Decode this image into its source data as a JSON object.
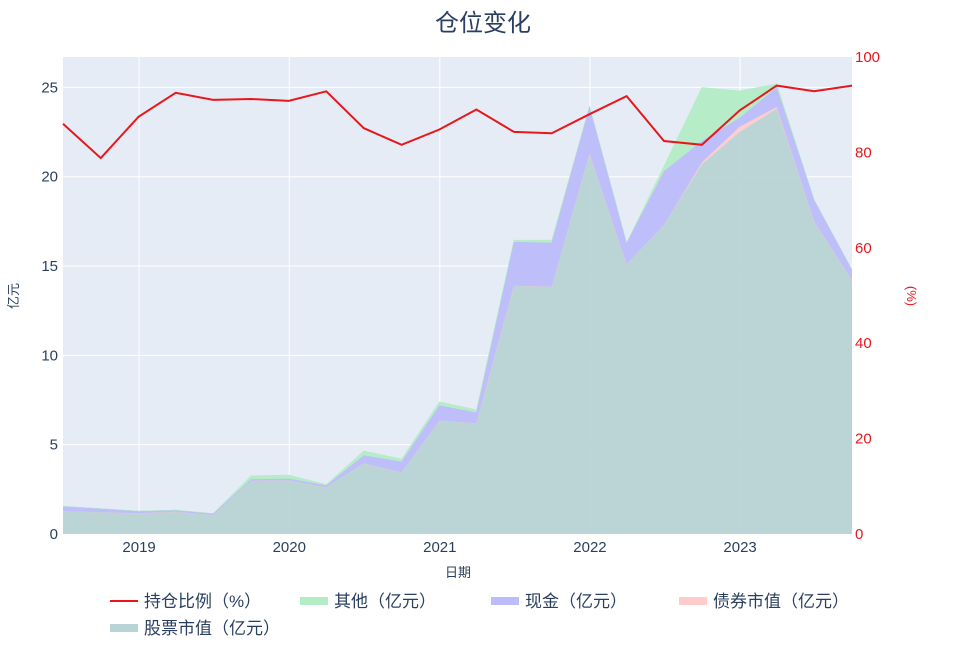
{
  "chart_data": {
    "type": "area",
    "title": "仓位变化",
    "xlabel": "日期",
    "ylabel": "亿元",
    "y2label": "(%)",
    "x_ticks": [
      "2019",
      "2020",
      "2021",
      "2022",
      "2023"
    ],
    "x": [
      "2018-06-30",
      "2018-09-30",
      "2018-12-31",
      "2019-03-31",
      "2019-06-30",
      "2019-09-30",
      "2019-12-31",
      "2020-03-31",
      "2020-06-30",
      "2020-09-30",
      "2020-12-31",
      "2021-03-31",
      "2021-06-30",
      "2021-09-30",
      "2021-12-31",
      "2022-03-31",
      "2022-06-30",
      "2022-09-30",
      "2022-12-31",
      "2023-03-31",
      "2023-06-30",
      "2023-09-30"
    ],
    "ylim": [
      0,
      26.7
    ],
    "yticks": [
      0,
      5,
      10,
      15,
      20,
      25
    ],
    "y2lim": [
      0,
      100
    ],
    "y2ticks": [
      0,
      20,
      40,
      60,
      80,
      100
    ],
    "series": [
      {
        "name": "股票市值（亿元）",
        "type": "area",
        "color": "#b8d4d5",
        "values": [
          1.28,
          1.22,
          1.16,
          1.24,
          1.06,
          2.98,
          3.0,
          2.62,
          3.95,
          3.45,
          6.35,
          6.2,
          13.9,
          13.85,
          21.3,
          15.1,
          17.3,
          20.7,
          22.5,
          23.8,
          17.5,
          14.2
        ]
      },
      {
        "name": "债券市值（亿元）",
        "type": "area",
        "color": "#ffcccc",
        "values": [
          0,
          0,
          0,
          0,
          0,
          0,
          0,
          0,
          0,
          0,
          0,
          0,
          0,
          0,
          0,
          0,
          0,
          0.1,
          0.3,
          0.1,
          0,
          0
        ]
      },
      {
        "name": "现金（亿元）",
        "type": "area",
        "color": "#bcbcfa",
        "values": [
          0.27,
          0.2,
          0.12,
          0.1,
          0.08,
          0.08,
          0.1,
          0.1,
          0.45,
          0.6,
          0.85,
          0.6,
          2.45,
          2.45,
          2.65,
          1.2,
          3.0,
          1.2,
          0.5,
          1.1,
          1.2,
          0.6
        ]
      },
      {
        "name": "其他（亿元）",
        "type": "area",
        "color": "#b3ecc5",
        "values": [
          0,
          0,
          0,
          0,
          0,
          0.2,
          0.2,
          0.05,
          0.25,
          0.15,
          0.2,
          0.15,
          0.1,
          0.15,
          0,
          0,
          0.3,
          3.0,
          1.5,
          0.2,
          0,
          0
        ]
      },
      {
        "name": "持仓比例（%）",
        "type": "line",
        "axis": "right",
        "color": "#e8171b",
        "values": [
          86.0,
          78.8,
          87.5,
          92.5,
          91.0,
          91.2,
          90.8,
          92.8,
          85.1,
          81.6,
          84.8,
          89.0,
          84.3,
          84.0,
          88.0,
          91.8,
          82.4,
          81.6,
          88.8,
          94.0,
          92.8,
          94.0
        ]
      }
    ],
    "legend_order": [
      "持仓比例（%）",
      "其他（亿元）",
      "现金（亿元）",
      "债券市值（亿元）",
      "股票市值（亿元）"
    ],
    "legend_position": "bottom",
    "grid": true
  }
}
